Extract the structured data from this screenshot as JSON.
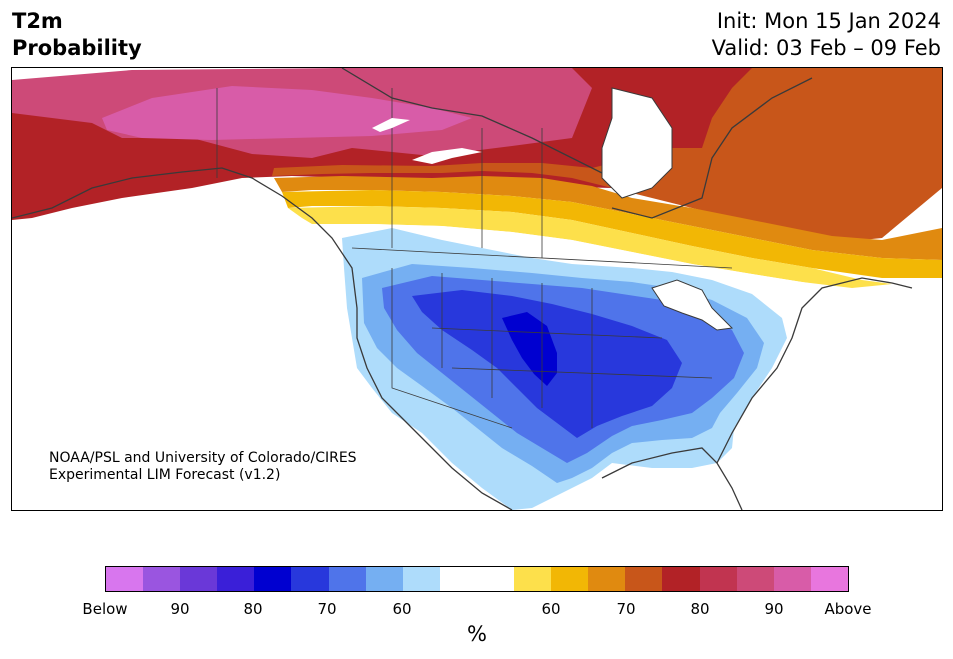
{
  "header": {
    "title_line1": "T2m",
    "title_line2": "Probability",
    "init": "Init: Mon 15 Jan 2024",
    "valid": "Valid: 03 Feb – 09 Feb"
  },
  "credit": {
    "line1": "NOAA/PSL and University of Colorado/CIRES",
    "line2": "Experimental LIM Forecast (v1.2)"
  },
  "colorbar": {
    "unit": "%",
    "colors": [
      "#d876ee",
      "#9a55e0",
      "#6a38d8",
      "#3a1fd8",
      "#0000d0",
      "#2838dc",
      "#4f74ea",
      "#75aff2",
      "#aedcfb",
      "#ffffff",
      "#ffffff",
      "#fde04b",
      "#f2b705",
      "#e08a10",
      "#c8561a",
      "#b22226",
      "#c13450",
      "#cd4a78",
      "#d85ca8",
      "#e876de"
    ],
    "tick_labels": [
      "Below",
      "90",
      "80",
      "70",
      "60",
      "60",
      "70",
      "80",
      "90",
      "Above"
    ]
  },
  "map": {
    "colors": {
      "coast": "#3a3a3a",
      "border": "#3a3a3a",
      "above_strong": "#cd4a78",
      "above_red": "#b22226",
      "above_orange": "#c8561a",
      "above_amber": "#e08a10",
      "above_yellow": "#f2b705",
      "above_light": "#fde04b",
      "below_light": "#aedcfb",
      "below_sky": "#75aff2",
      "below_mid": "#4f74ea",
      "below_deep": "#2838dc",
      "below_core": "#0000d0"
    }
  }
}
